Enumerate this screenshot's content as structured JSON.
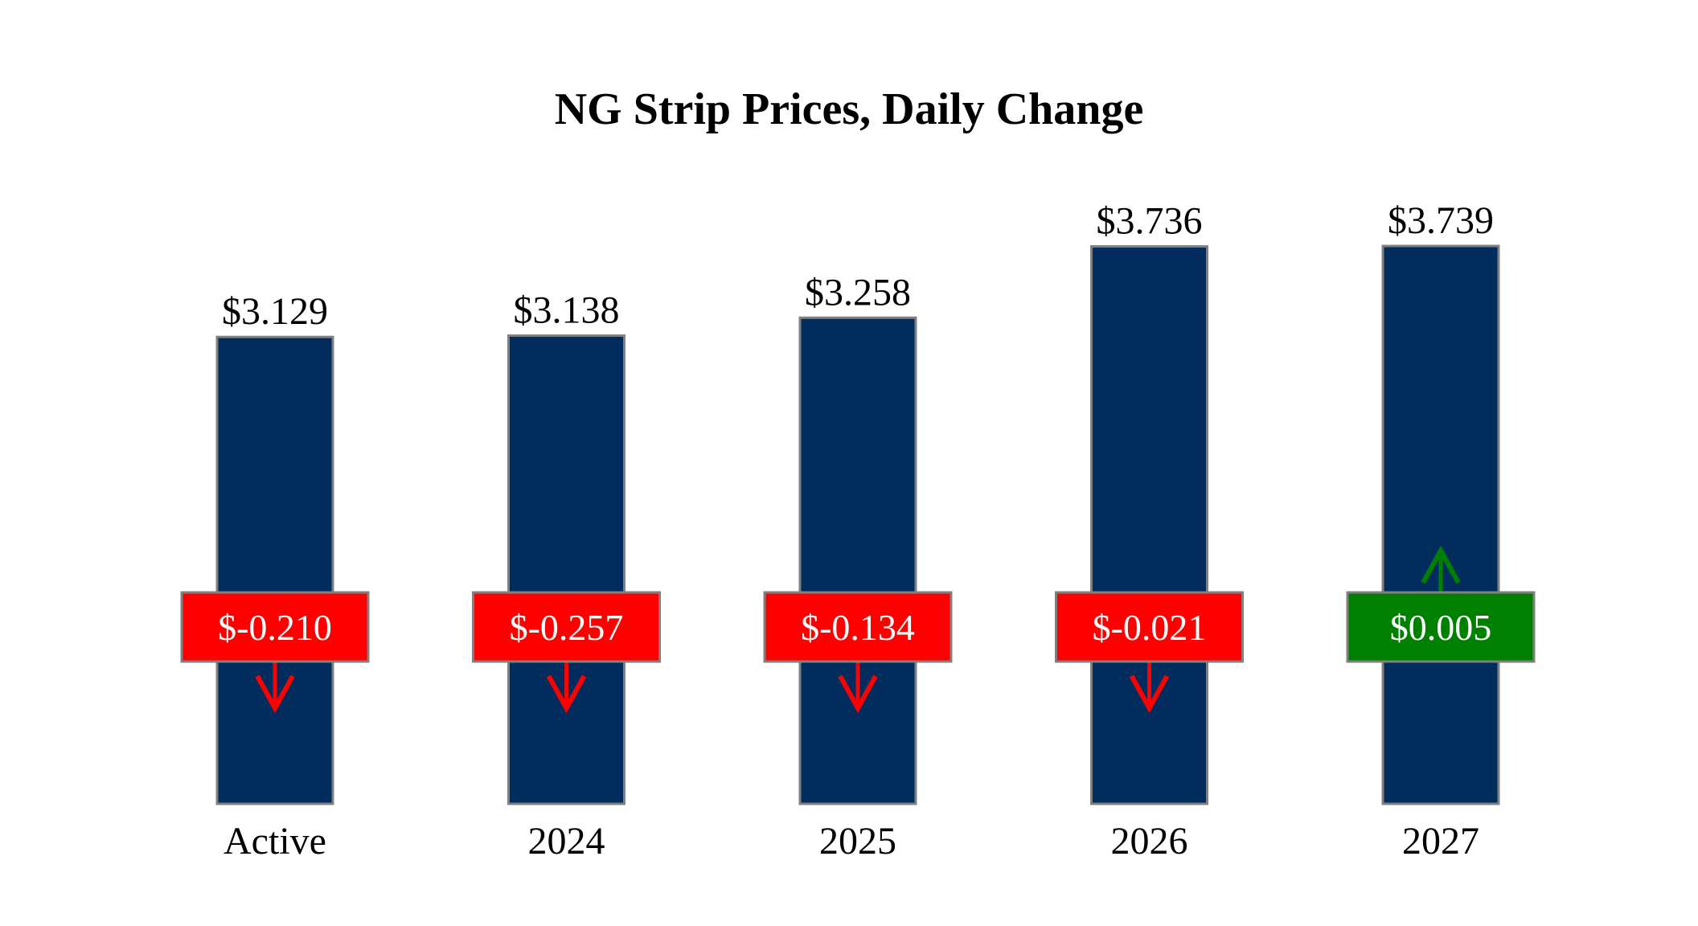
{
  "chart_data": {
    "type": "bar",
    "title": "NG Strip Prices, Daily Change",
    "xlabel": "",
    "ylabel": "",
    "ylim": [
      0,
      4.2
    ],
    "grid": false,
    "categories": [
      "Active",
      "2024",
      "2025",
      "2026",
      "2027"
    ],
    "values": [
      3.129,
      3.138,
      3.258,
      3.736,
      3.739
    ],
    "value_labels": [
      "$3.129",
      "$3.138",
      "$3.258",
      "$3.736",
      "$3.739"
    ],
    "changes": [
      -0.21,
      -0.257,
      -0.134,
      -0.021,
      0.005
    ],
    "change_labels": [
      "$-0.210",
      "$-0.257",
      "$-0.134",
      "$-0.021",
      "$0.005"
    ],
    "change_direction": [
      "down",
      "down",
      "down",
      "down",
      "up"
    ],
    "colors": {
      "bar": "#002d5e",
      "bar_outline": "#808080",
      "down": "#ff0000",
      "up": "#008000",
      "text": "#000000",
      "badge_text": "#ffffff"
    }
  }
}
